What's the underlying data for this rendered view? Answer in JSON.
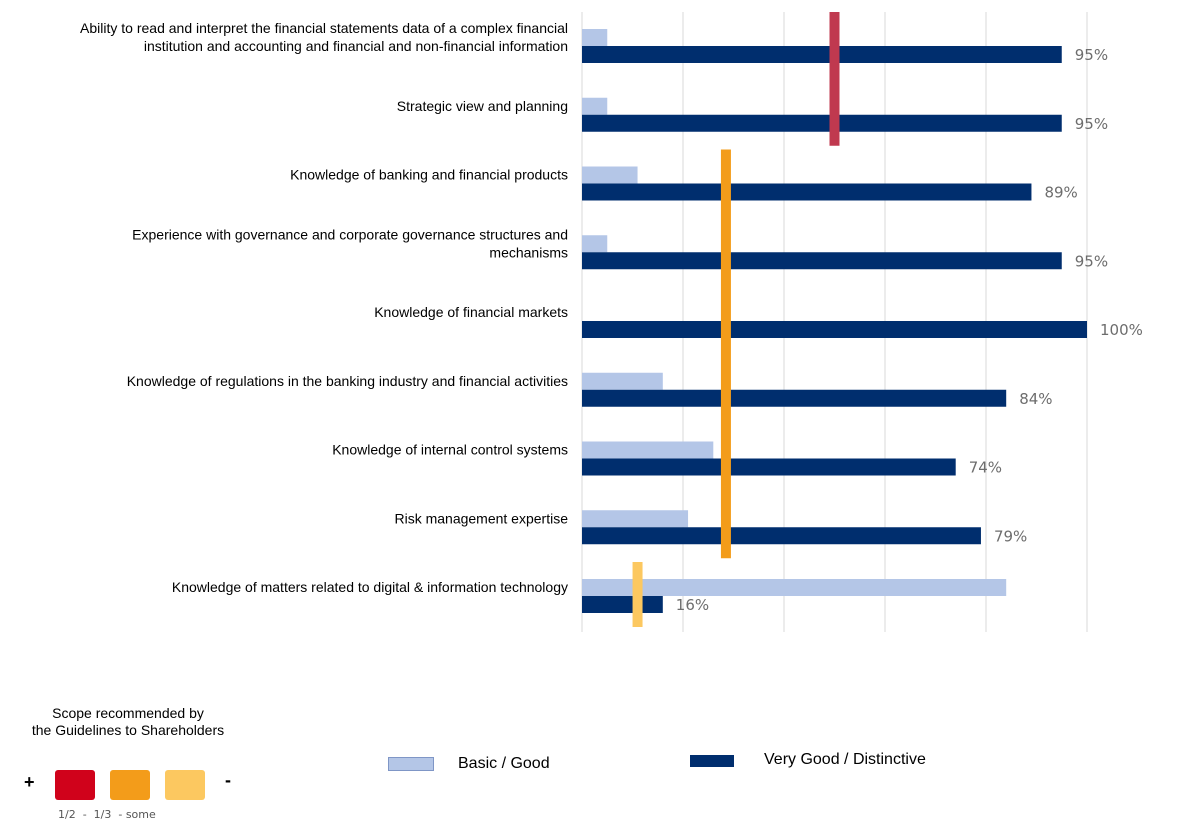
{
  "chart_data": {
    "type": "bar",
    "orientation": "horizontal",
    "categories": [
      "Ability to read and interpret the financial statements data of a complex financial institution and accounting and financial and non-financial information",
      "Strategic view and planning",
      "Knowledge of banking and financial products",
      "Experience with governance and corporate governance structures and mechanisms",
      "Knowledge of financial markets",
      "Knowledge of regulations in the banking industry and financial activities",
      "Knowledge of internal control systems",
      "Risk management expertise",
      "Knowledge of matters related to digital & information technology"
    ],
    "category_lines": [
      [
        "Ability to read and interpret the financial statements data of a complex financial",
        "institution and accounting and financial and non-financial information"
      ],
      [
        "Strategic view and planning"
      ],
      [
        "Knowledge of banking and financial products"
      ],
      [
        "Experience with governance and corporate governance structures and",
        "mechanisms"
      ],
      [
        "Knowledge of financial markets"
      ],
      [
        "Knowledge of regulations in the banking industry and financial activities"
      ],
      [
        "Knowledge of internal control systems"
      ],
      [
        "Risk management expertise"
      ],
      [
        "Knowledge of matters related to digital & information technology"
      ]
    ],
    "series": [
      {
        "name": "Basic / Good",
        "color": "#b4c6e7",
        "values": [
          5,
          5,
          11,
          5,
          0,
          16,
          26,
          21,
          84
        ]
      },
      {
        "name": "Very Good / Distinctive",
        "color": "#002e6e",
        "values": [
          95,
          95,
          89,
          95,
          100,
          84,
          74,
          79,
          16
        ]
      }
    ],
    "data_labels": [
      "95%",
      "95%",
      "89%",
      "95%",
      "100%",
      "84%",
      "74%",
      "79%",
      "16%"
    ],
    "xlim": [
      0,
      100
    ],
    "grid": true,
    "reference_lines": [
      {
        "level": "1/2",
        "color": "#c0394f",
        "value": 50,
        "from_category": 0,
        "to_category": 1
      },
      {
        "level": "1/3",
        "color": "#f39c1a",
        "value": 28.5,
        "from_category": 2,
        "to_category": 7
      },
      {
        "level": "some",
        "color": "#fcc860",
        "value": 11,
        "from_category": 8,
        "to_category": 8
      }
    ],
    "legend": {
      "placement": "bottom",
      "entries": [
        "Basic / Good",
        "Very Good / Distinctive"
      ]
    }
  },
  "scope_legend": {
    "title_lines": [
      "Scope recommended by",
      "the Guidelines to Shareholders"
    ],
    "plus": "+",
    "minus": "-",
    "fractions": "1/2  -  1/3  - some",
    "swatch_colors": [
      "#d0021b",
      "#f39c1a",
      "#fcc860"
    ]
  }
}
